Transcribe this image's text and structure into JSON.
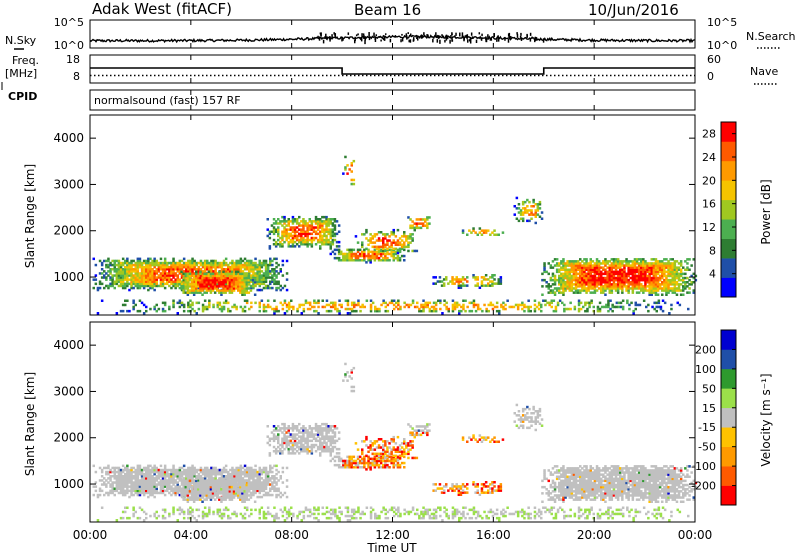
{
  "header": {
    "station": "Adak West (fitACF)",
    "beam": "Beam 16",
    "date": "10/Jun/2016"
  },
  "left_labels": {
    "nsky": "N.Sky",
    "freq": "Freq.",
    "freq_unit": "[MHz]",
    "cpid": "CPID"
  },
  "right_labels": {
    "nsearch": "N.Search",
    "nave": "Nave"
  },
  "cpid_text": "normalsound (fast) 157 RF",
  "colors": {
    "power_scale": [
      "#0000ff",
      "#1f4fa8",
      "#2e7d32",
      "#4caf50",
      "#a0c820",
      "#f5c400",
      "#ff9a00",
      "#ff5a00",
      "#ff0000"
    ],
    "velocity_scale": [
      "#ff0000",
      "#ff5a00",
      "#ff9a00",
      "#ffc200",
      "#c0c0c0",
      "#9be04a",
      "#2e9a2e",
      "#1f4fa8",
      "#0000d0"
    ],
    "ground_scatter": "#c0c0c0"
  },
  "chart_data": [
    {
      "type": "line",
      "name": "noise-panel",
      "series": [
        {
          "name": "N.Sky",
          "style": "solid"
        },
        {
          "name": "N.Search",
          "style": "dotted"
        }
      ],
      "yticks_left": [
        "10^5",
        "10^0"
      ],
      "yticks_right": [
        "10^5",
        "10^0"
      ]
    },
    {
      "type": "line",
      "name": "frequency-panel",
      "yticks_left": [
        "18",
        "8"
      ],
      "yticks_right": [
        "60",
        "0"
      ],
      "series": [
        {
          "name": "Freq.",
          "x": [
            "00:00",
            "10:00",
            "10:00",
            "18:00",
            "18:00",
            "24:00"
          ],
          "y": [
            13.5,
            13.5,
            10.5,
            10.5,
            13.5,
            13.5
          ]
        },
        {
          "name": "Nave",
          "x": [
            "00:00",
            "24:00"
          ],
          "y": [
            16,
            16
          ]
        }
      ]
    },
    {
      "type": "heatmap",
      "name": "power",
      "ylabel": "Slant Range [km]",
      "yticks": [
        "4000",
        "3000",
        "2000",
        "1000"
      ],
      "ylim": [
        180,
        4500
      ],
      "xlim": [
        "00:00",
        "24:00"
      ],
      "colorbar_label": "Power [dB]",
      "colorbar_ticks": [
        "28",
        "24",
        "20",
        "16",
        "12",
        "8",
        "4"
      ],
      "colorbar_range": [
        0,
        30
      ]
    },
    {
      "type": "heatmap",
      "name": "velocity",
      "ylabel": "Slant Range [km]",
      "yticks": [
        "4000",
        "3000",
        "2000",
        "1000"
      ],
      "ylim": [
        180,
        4500
      ],
      "xlim": [
        "00:00",
        "24:00"
      ],
      "colorbar_label": "Velocity [m s⁻¹]",
      "colorbar_ticks": [
        "200",
        "100",
        "50",
        "15",
        "-15",
        "-50",
        "-100",
        "-200"
      ]
    }
  ],
  "xaxis": {
    "ticks": [
      "00:00",
      "04:00",
      "08:00",
      "12:00",
      "16:00",
      "20:00",
      "00:00"
    ],
    "label": "Time UT"
  }
}
